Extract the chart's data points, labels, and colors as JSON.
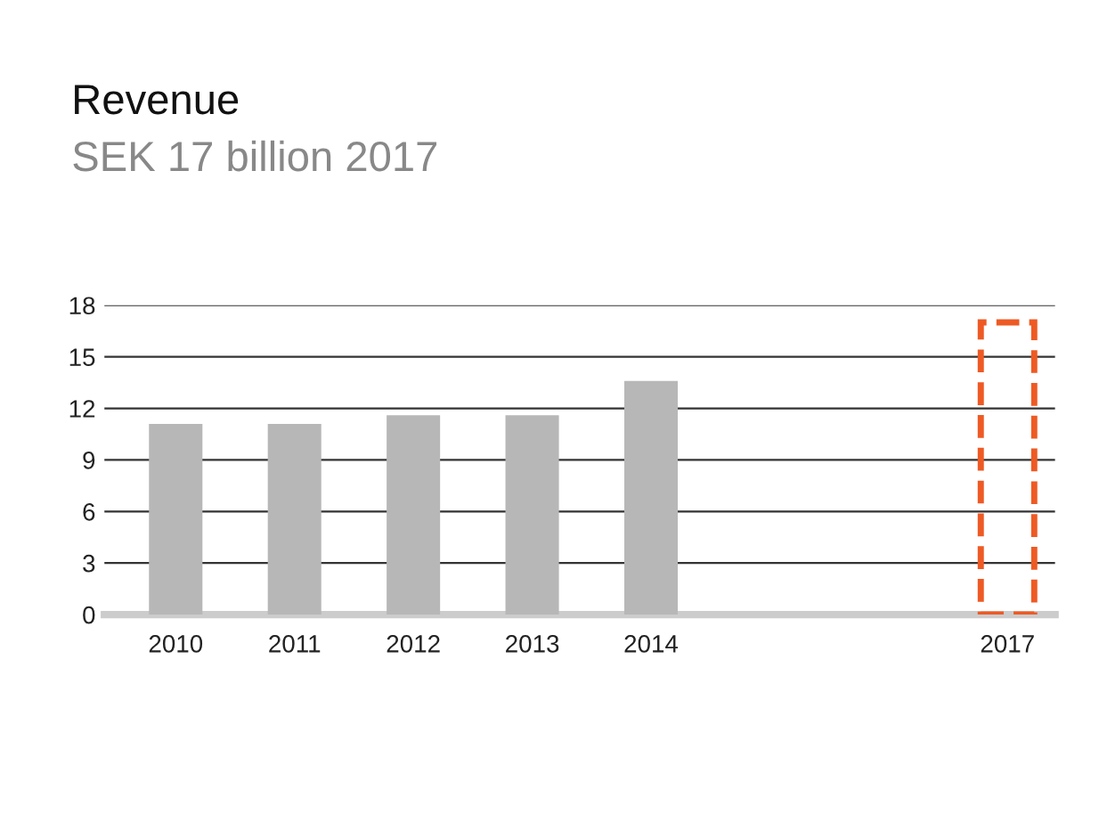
{
  "chart_data": {
    "type": "bar",
    "title": "Revenue",
    "subtitle": "SEK 17 billion 2017",
    "categories": [
      "2010",
      "2011",
      "2012",
      "2013",
      "2014",
      null,
      null,
      "2017"
    ],
    "series": [
      {
        "color": "#b7b7b7",
        "values": [
          11.1,
          11.1,
          11.6,
          11.6,
          13.6,
          null,
          null,
          null
        ]
      },
      {
        "color": "#ee5a24",
        "line_style": "dashed",
        "values": [
          null,
          null,
          null,
          null,
          null,
          null,
          null,
          17
        ]
      }
    ],
    "ylim": [
      0,
      18
    ],
    "yticks": [
      0,
      3,
      6,
      9,
      12,
      15,
      18
    ],
    "grid": "y",
    "legend": false
  }
}
